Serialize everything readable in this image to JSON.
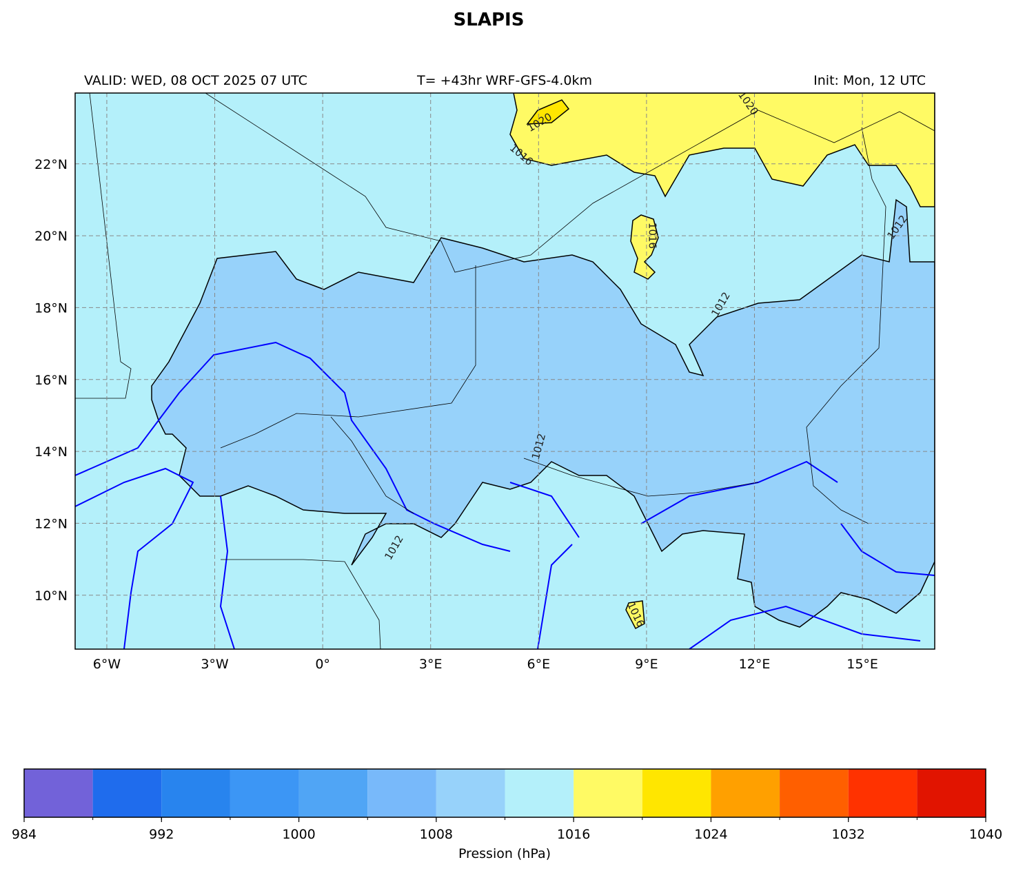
{
  "header": {
    "title": "SLAPIS",
    "valid": "VALID: WED, 08 OCT 2025 07 UTC",
    "run": "T= +43hr WRF-GFS-4.0km",
    "init": "Init: Mon, 12 UTC"
  },
  "map": {
    "lonlim": [
      -6.88,
      17.01
    ],
    "latlim": [
      8.5,
      23.97
    ],
    "lon_ticks": [
      {
        "value": -6,
        "label": "6°W"
      },
      {
        "value": -3,
        "label": "3°W"
      },
      {
        "value": 0,
        "label": "0°"
      },
      {
        "value": 3,
        "label": "3°E"
      },
      {
        "value": 6,
        "label": "6°E"
      },
      {
        "value": 9,
        "label": "9°E"
      },
      {
        "value": 12,
        "label": "12°E"
      },
      {
        "value": 15,
        "label": "15°E"
      }
    ],
    "lat_ticks": [
      {
        "value": 10,
        "label": "10°N"
      },
      {
        "value": 12,
        "label": "12°N"
      },
      {
        "value": 14,
        "label": "14°N"
      },
      {
        "value": 16,
        "label": "16°N"
      },
      {
        "value": 18,
        "label": "18°N"
      },
      {
        "value": 20,
        "label": "20°N"
      },
      {
        "value": 22,
        "label": "22°N"
      }
    ],
    "contour_labels": [
      1020,
      1020,
      1016,
      1016,
      1012,
      1012,
      1012,
      1012,
      1016
    ]
  },
  "colorbar": {
    "label": "Pression (hPa)",
    "lim": [
      984,
      1040
    ],
    "levels": [
      984,
      988,
      992,
      996,
      1000,
      1004,
      1008,
      1012,
      1016,
      1020,
      1024,
      1028,
      1032,
      1036,
      1040
    ],
    "colors": [
      "#7262d9",
      "#1f6ced",
      "#2884ee",
      "#3c96f5",
      "#50a5f5",
      "#78b9fa",
      "#97d2fa",
      "#b4f0fa",
      "#fffa64",
      "#ffe600",
      "#ffa000",
      "#ff5f00",
      "#ff3200",
      "#e11400"
    ],
    "ticks": [
      984,
      992,
      1000,
      1008,
      1016,
      1024,
      1032,
      1040
    ]
  }
}
